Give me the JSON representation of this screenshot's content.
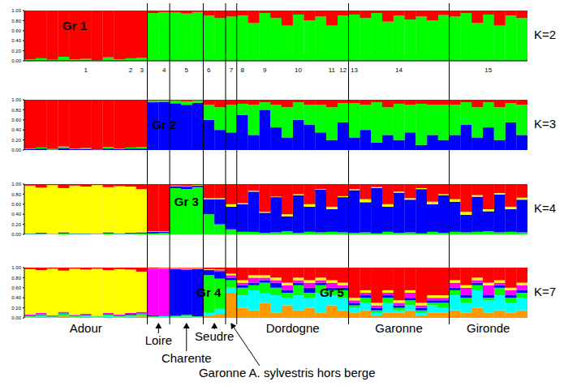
{
  "regions": [
    {
      "label": "Adour",
      "individuals": 11
    },
    {
      "label": "Loire",
      "individuals": 2
    },
    {
      "label": "Charente",
      "individuals": 3
    },
    {
      "label": "Seudre",
      "individuals": 2
    },
    {
      "label": "Garonne A. sylvestris hors berge",
      "individuals": 1
    },
    {
      "label": "Dordogne",
      "individuals": 10
    },
    {
      "label": "Garonne",
      "individuals": 9
    },
    {
      "label": "Gironde",
      "individuals": 7
    }
  ],
  "chart_data": [
    {
      "type": "bar",
      "stacked": true,
      "title": "K=2",
      "ylim": [
        0,
        1
      ],
      "yticks": [
        {
          "value": 0,
          "label": "0.00"
        },
        {
          "value": 0.2,
          "label": "0.20"
        },
        {
          "value": 0.4,
          "label": "0.40"
        },
        {
          "value": 0.6,
          "label": "0.60"
        },
        {
          "value": 0.8,
          "label": "0.80"
        },
        {
          "value": 1,
          "label": "1.00"
        }
      ],
      "categories": [
        null,
        null,
        null,
        null,
        null,
        "1",
        null,
        null,
        null,
        "2",
        "3",
        null,
        "4",
        null,
        "5",
        null,
        "6",
        null,
        "7",
        "8",
        null,
        "9",
        null,
        null,
        "10",
        null,
        null,
        "11",
        "12",
        "13",
        null,
        null,
        null,
        "14",
        null,
        null,
        null,
        null,
        null,
        null,
        null,
        "15",
        null,
        null,
        null
      ],
      "series": [
        {
          "color": "#00ff00",
          "values": [
            0.03,
            0.05,
            0.02,
            0.08,
            0.03,
            0.04,
            0.01,
            0.07,
            0.03,
            0.05,
            0.06,
            0.95,
            0.97,
            0.96,
            0.94,
            0.97,
            0.9,
            0.85,
            0.88,
            0.9,
            0.75,
            0.95,
            0.85,
            0.7,
            0.92,
            0.8,
            0.88,
            0.7,
            0.9,
            0.92,
            0.85,
            0.95,
            0.78,
            0.9,
            0.82,
            0.88,
            0.8,
            0.91,
            0.88,
            0.95,
            0.75,
            0.92,
            0.7,
            0.9,
            0.85
          ]
        },
        {
          "color": "#ff0000",
          "values": [
            0.97,
            0.95,
            0.98,
            0.92,
            0.97,
            0.96,
            0.99,
            0.93,
            0.97,
            0.95,
            0.94,
            0.05,
            0.03,
            0.04,
            0.06,
            0.03,
            0.1,
            0.15,
            0.12,
            0.1,
            0.25,
            0.05,
            0.15,
            0.3,
            0.08,
            0.2,
            0.12,
            0.3,
            0.1,
            0.08,
            0.15,
            0.05,
            0.22,
            0.1,
            0.18,
            0.12,
            0.2,
            0.09,
            0.12,
            0.05,
            0.25,
            0.08,
            0.3,
            0.1,
            0.15
          ]
        }
      ],
      "annotations": [
        {
          "text": "Gr 1",
          "x": 4,
          "y": 0.7
        }
      ]
    },
    {
      "type": "bar",
      "stacked": true,
      "title": "K=3",
      "ylim": [
        0,
        1
      ],
      "tick_labels": "y",
      "yticks": [
        {
          "value": 0,
          "label": "0.00"
        },
        {
          "value": 0.2,
          "label": "0.20"
        },
        {
          "value": 0.4,
          "label": "0.40"
        },
        {
          "value": 0.6,
          "label": "0.60"
        },
        {
          "value": 0.8,
          "label": "0.80"
        },
        {
          "value": 1,
          "label": "1.00"
        }
      ],
      "series": [
        {
          "color": "#0000ff",
          "values": [
            0.02,
            0.03,
            0.01,
            0.04,
            0.02,
            0.02,
            0.01,
            0.03,
            0.02,
            0.03,
            0.03,
            0.95,
            0.96,
            0.93,
            0.9,
            0.94,
            0.6,
            0.4,
            0.35,
            0.7,
            0.3,
            0.8,
            0.45,
            0.25,
            0.6,
            0.5,
            0.35,
            0.2,
            0.55,
            0.25,
            0.4,
            0.15,
            0.3,
            0.2,
            0.35,
            0.1,
            0.3,
            0.2,
            0.3,
            0.5,
            0.25,
            0.45,
            0.2,
            0.55,
            0.3
          ]
        },
        {
          "color": "#00ff00",
          "values": [
            0.01,
            0.02,
            0.01,
            0.03,
            0.01,
            0.02,
            0,
            0.03,
            0.01,
            0.02,
            0.03,
            0.03,
            0.02,
            0.05,
            0.07,
            0.04,
            0.3,
            0.45,
            0.55,
            0.22,
            0.6,
            0.15,
            0.45,
            0.6,
            0.35,
            0.4,
            0.55,
            0.65,
            0.38,
            0.68,
            0.5,
            0.8,
            0.55,
            0.72,
            0.55,
            0.82,
            0.6,
            0.7,
            0.6,
            0.45,
            0.6,
            0.5,
            0.65,
            0.38,
            0.6
          ]
        },
        {
          "color": "#ff0000",
          "values": [
            0.97,
            0.95,
            0.98,
            0.93,
            0.97,
            0.96,
            0.99,
            0.94,
            0.97,
            0.95,
            0.94,
            0.02,
            0.02,
            0.02,
            0.03,
            0.02,
            0.1,
            0.15,
            0.1,
            0.08,
            0.1,
            0.05,
            0.1,
            0.15,
            0.05,
            0.1,
            0.1,
            0.15,
            0.07,
            0.07,
            0.1,
            0.05,
            0.15,
            0.08,
            0.1,
            0.08,
            0.1,
            0.1,
            0.1,
            0.05,
            0.15,
            0.05,
            0.15,
            0.07,
            0.1
          ]
        }
      ],
      "annotations": [
        {
          "text": "Gr 2",
          "x": 12,
          "y": 0.5
        }
      ]
    },
    {
      "type": "bar",
      "stacked": true,
      "title": "K=4",
      "ylim": [
        0,
        1
      ],
      "tick_labels": "y",
      "yticks": [
        {
          "value": 0,
          "label": "0.00"
        },
        {
          "value": 0.2,
          "label": "0.20"
        },
        {
          "value": 0.4,
          "label": "0.40"
        },
        {
          "value": 0.6,
          "label": "0.60"
        },
        {
          "value": 0.8,
          "label": "0.80"
        },
        {
          "value": 1,
          "label": "1.00"
        }
      ],
      "series": [
        {
          "color": "#00ff00",
          "values": [
            0.01,
            0.01,
            0,
            0.02,
            0.01,
            0.01,
            0,
            0.02,
            0.01,
            0.01,
            0.02,
            0.02,
            0.03,
            0.92,
            0.9,
            0.94,
            0.4,
            0.2,
            0.1,
            0.05,
            0.05,
            0.03,
            0.04,
            0.06,
            0.03,
            0.05,
            0.04,
            0.05,
            0.04,
            0.03,
            0.04,
            0.02,
            0.05,
            0.03,
            0.04,
            0.02,
            0.05,
            0.03,
            0.05,
            0.04,
            0.05,
            0.06,
            0.04,
            0.05,
            0.04
          ]
        },
        {
          "color": "#0000ff",
          "values": [
            0.01,
            0.02,
            0.01,
            0.02,
            0.01,
            0.01,
            0.01,
            0.02,
            0.01,
            0.02,
            0.02,
            0.03,
            0.02,
            0.04,
            0.05,
            0.03,
            0.3,
            0.5,
            0.45,
            0.55,
            0.8,
            0.4,
            0.7,
            0.3,
            0.75,
            0.5,
            0.85,
            0.45,
            0.7,
            0.85,
            0.6,
            0.9,
            0.5,
            0.8,
            0.65,
            0.88,
            0.55,
            0.75,
            0.6,
            0.35,
            0.7,
            0.4,
            0.75,
            0.45,
            0.65
          ]
        },
        {
          "color": "#ffff00",
          "values": [
            0.95,
            0.9,
            0.97,
            0.88,
            0.95,
            0.93,
            0.97,
            0.9,
            0.94,
            0.92,
            0.86,
            0.01,
            0.01,
            0.01,
            0.01,
            0.01,
            0.02,
            0.02,
            0.05,
            0.02,
            0.02,
            0.02,
            0.01,
            0.04,
            0.02,
            0.05,
            0.01,
            0.05,
            0.02,
            0.02,
            0.06,
            0.02,
            0.05,
            0.02,
            0.03,
            0.02,
            0.05,
            0.02,
            0.05,
            0.06,
            0.03,
            0.04,
            0.03,
            0.05,
            0.04
          ]
        },
        {
          "color": "#ff0000",
          "values": [
            0.03,
            0.07,
            0.02,
            0.08,
            0.03,
            0.05,
            0.02,
            0.06,
            0.04,
            0.05,
            0.1,
            0.94,
            0.94,
            0.03,
            0.04,
            0.02,
            0.28,
            0.28,
            0.4,
            0.38,
            0.13,
            0.55,
            0.25,
            0.6,
            0.2,
            0.4,
            0.1,
            0.45,
            0.24,
            0.1,
            0.3,
            0.06,
            0.4,
            0.15,
            0.28,
            0.08,
            0.35,
            0.2,
            0.3,
            0.55,
            0.22,
            0.5,
            0.18,
            0.45,
            0.27
          ]
        }
      ],
      "annotations": [
        {
          "text": "Gr 3",
          "x": 14,
          "y": 0.65
        }
      ]
    },
    {
      "type": "bar",
      "stacked": true,
      "title": "K=7",
      "ylim": [
        0,
        1
      ],
      "tick_labels": "y",
      "yticks": [
        {
          "value": 0,
          "label": "0.00"
        },
        {
          "value": 0.2,
          "label": "0.20"
        },
        {
          "value": 0.4,
          "label": "0.40"
        },
        {
          "value": 0.6,
          "label": "0.60"
        },
        {
          "value": 0.8,
          "label": "0.80"
        },
        {
          "value": 1,
          "label": "1.00"
        }
      ],
      "series": [
        {
          "color": "#ff9900",
          "values": [
            0.01,
            0.02,
            0.01,
            0.03,
            0.01,
            0.02,
            0.01,
            0.02,
            0.01,
            0.02,
            0.03,
            0.01,
            0.01,
            0.01,
            0.02,
            0.01,
            0.05,
            0.08,
            0.5,
            0.2,
            0.15,
            0.3,
            0.1,
            0.25,
            0.15,
            0.2,
            0.1,
            0.25,
            0.15,
            0.1,
            0.15,
            0.05,
            0.1,
            0.1,
            0.15,
            0.05,
            0.1,
            0.1,
            0.15,
            0.1,
            0.2,
            0.1,
            0.15,
            0.1,
            0.15
          ]
        },
        {
          "color": "#00ffff",
          "values": [
            0.01,
            0.01,
            0.01,
            0.02,
            0.01,
            0.01,
            0.01,
            0.02,
            0.01,
            0.01,
            0.02,
            0.01,
            0.02,
            0.01,
            0.01,
            0.01,
            0.05,
            0.1,
            0.1,
            0.25,
            0.4,
            0.2,
            0.35,
            0.15,
            0.3,
            0.2,
            0.4,
            0.2,
            0.25,
            0.1,
            0.15,
            0.05,
            0.2,
            0.05,
            0.1,
            0.05,
            0.15,
            0.1,
            0.3,
            0.2,
            0.35,
            0.25,
            0.3,
            0.2,
            0.25
          ]
        },
        {
          "color": "#00ff00",
          "values": [
            0.02,
            0.03,
            0.01,
            0.04,
            0.02,
            0.02,
            0.01,
            0.03,
            0.02,
            0.03,
            0.03,
            0.01,
            0.01,
            0.02,
            0.03,
            0.01,
            0.75,
            0.6,
            0.15,
            0.15,
            0.1,
            0.2,
            0.15,
            0.1,
            0.2,
            0.1,
            0.15,
            0.1,
            0.15,
            0.05,
            0.1,
            0.05,
            0.1,
            0.05,
            0.1,
            0.05,
            0.05,
            0.1,
            0.1,
            0.1,
            0.1,
            0.05,
            0.15,
            0.1,
            0.1
          ]
        },
        {
          "color": "#0000ff",
          "values": [
            0.01,
            0.01,
            0.01,
            0.01,
            0.01,
            0.01,
            0,
            0.01,
            0.01,
            0.02,
            0.01,
            0.02,
            0.01,
            0.93,
            0.9,
            0.94,
            0.1,
            0.15,
            0.05,
            0.05,
            0.05,
            0.05,
            0.1,
            0.05,
            0.05,
            0.1,
            0.05,
            0.05,
            0.05,
            0.05,
            0.05,
            0.05,
            0.05,
            0.05,
            0.05,
            0.05,
            0.05,
            0.05,
            0.05,
            0.05,
            0.05,
            0.05,
            0.05,
            0.05,
            0.05
          ]
        },
        {
          "color": "#ff00ff",
          "values": [
            0.02,
            0.03,
            0.01,
            0.02,
            0.01,
            0.02,
            0.01,
            0.02,
            0.02,
            0.02,
            0.03,
            0.92,
            0.93,
            0.01,
            0.02,
            0.01,
            0.01,
            0.02,
            0.05,
            0.05,
            0.1,
            0.05,
            0.05,
            0.1,
            0.05,
            0.1,
            0.05,
            0.1,
            0.05,
            0.05,
            0.05,
            0.05,
            0.05,
            0.05,
            0.1,
            0.05,
            0.05,
            0.05,
            0.1,
            0.15,
            0.05,
            0.2,
            0.05,
            0.1,
            0.1
          ]
        },
        {
          "color": "#ffff00",
          "values": [
            0.9,
            0.85,
            0.93,
            0.82,
            0.92,
            0.88,
            0.94,
            0.85,
            0.9,
            0.86,
            0.8,
            0.01,
            0.01,
            0.01,
            0.01,
            0.01,
            0.01,
            0.01,
            0.03,
            0.05,
            0.05,
            0.05,
            0.05,
            0.05,
            0.05,
            0.05,
            0.05,
            0.05,
            0.05,
            0.05,
            0.05,
            0.05,
            0.05,
            0.05,
            0.05,
            0.05,
            0.05,
            0.05,
            0.05,
            0.05,
            0.05,
            0.05,
            0.05,
            0.05,
            0.05
          ]
        },
        {
          "color": "#ff0000",
          "values": [
            0.03,
            0.05,
            0.02,
            0.06,
            0.02,
            0.04,
            0.02,
            0.05,
            0.03,
            0.04,
            0.08,
            0.02,
            0.01,
            0.01,
            0.01,
            0.01,
            0.03,
            0.04,
            0.12,
            0.25,
            0.15,
            0.15,
            0.2,
            0.3,
            0.2,
            0.25,
            0.2,
            0.25,
            0.3,
            0.6,
            0.45,
            0.7,
            0.45,
            0.65,
            0.45,
            0.7,
            0.55,
            0.55,
            0.25,
            0.35,
            0.2,
            0.3,
            0.25,
            0.4,
            0.3
          ]
        }
      ],
      "annotations": [
        {
          "text": "Gr 4",
          "x": 16,
          "y": 0.5
        },
        {
          "text": "Gr 5",
          "x": 27,
          "y": 0.5
        }
      ]
    }
  ]
}
